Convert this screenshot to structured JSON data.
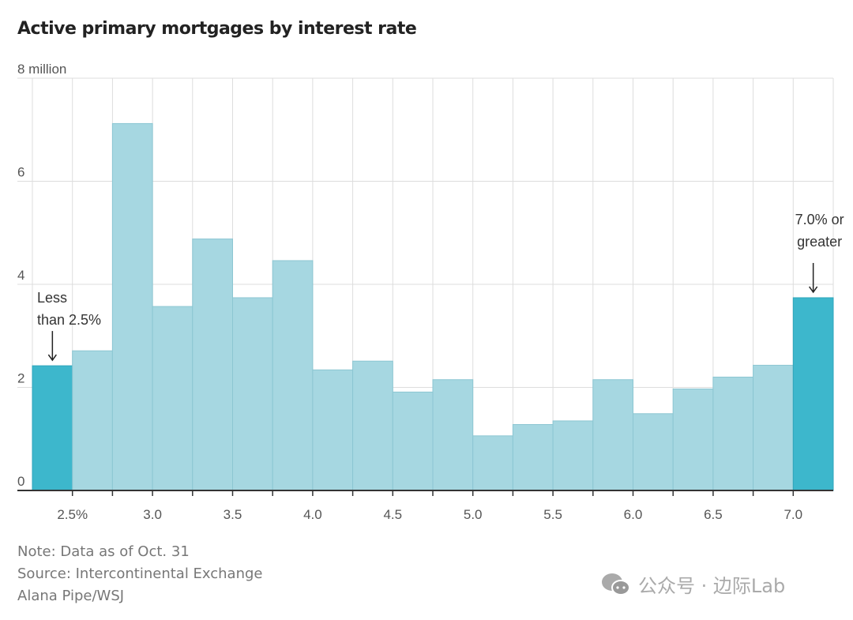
{
  "chart_data": {
    "type": "bar",
    "title": "Active primary mortgages by interest rate",
    "ylabel": "",
    "xlabel": "",
    "ylim": [
      0,
      8
    ],
    "y_ticks": [
      "0",
      "2",
      "4",
      "6",
      "8 million"
    ],
    "y_tick_values": [
      0,
      2,
      4,
      6,
      8
    ],
    "x_tick_labels": [
      "2.5%",
      "3.0",
      "3.5",
      "4.0",
      "4.5",
      "5.0",
      "5.5",
      "6.0",
      "6.5",
      "7.0"
    ],
    "x_tick_values": [
      2.5,
      3.0,
      3.5,
      4.0,
      4.5,
      5.0,
      5.5,
      6.0,
      6.5,
      7.0
    ],
    "bin_width": 0.25,
    "bins": [
      "<2.5",
      "2.50-2.75",
      "2.75-3.00",
      "3.00-3.25",
      "3.25-3.50",
      "3.50-3.75",
      "3.75-4.00",
      "4.00-4.25",
      "4.25-4.50",
      "4.50-4.75",
      "4.75-5.00",
      "5.00-5.25",
      "5.25-5.50",
      "5.50-5.75",
      "5.75-6.00",
      "6.00-6.25",
      "6.25-6.50",
      "6.50-6.75",
      "6.75-7.00",
      ">=7.0"
    ],
    "values": [
      2.42,
      2.71,
      7.12,
      3.57,
      4.88,
      3.74,
      4.46,
      2.34,
      2.51,
      1.91,
      2.15,
      1.06,
      1.28,
      1.35,
      2.15,
      1.49,
      1.97,
      2.2,
      2.43,
      3.74
    ],
    "highlighted": [
      0,
      19
    ],
    "grid": true,
    "annotations": [
      {
        "text_lines": [
          "Less",
          "than 2.5%"
        ],
        "bin": 0
      },
      {
        "text_lines": [
          "7.0% or",
          "greater"
        ],
        "bin": 19
      }
    ],
    "colors": {
      "bar": "#a6d7e1",
      "highlight": "#3db7cc",
      "grid": "#dddddd",
      "axis": "#333333"
    }
  },
  "footer": {
    "note": "Note: Data as of Oct. 31",
    "source": "Source: Intercontinental Exchange",
    "credit": "Alana Pipe/WSJ"
  },
  "watermark": {
    "text": "公众号 · 边际Lab",
    "icon": "wechat-icon"
  }
}
